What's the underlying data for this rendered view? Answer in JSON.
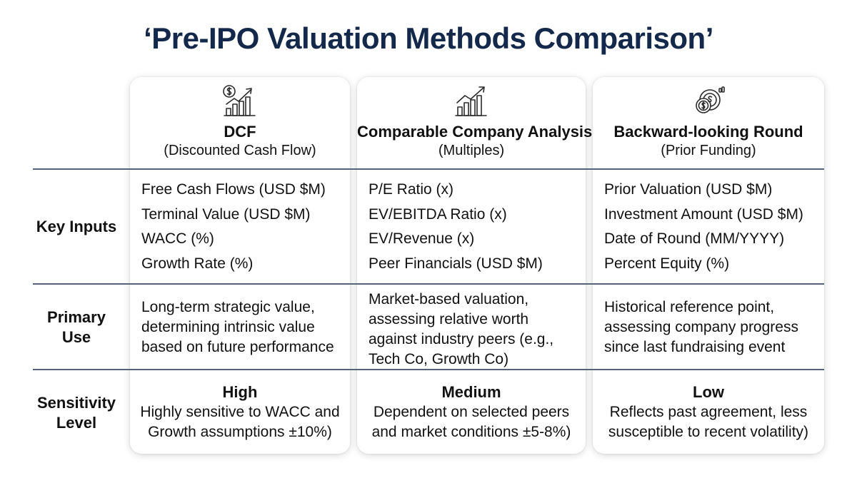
{
  "title": "‘Pre-IPO Valuation Methods Comparison’",
  "row_labels": {
    "key_inputs": "Key Inputs",
    "primary_use": [
      "Primary",
      "Use"
    ],
    "sensitivity": [
      "Sensitivity",
      "Level"
    ]
  },
  "columns": [
    {
      "icon": "money-growth-chart-icon",
      "title": "DCF",
      "subtitle": "(Discounted Cash Flow)",
      "inputs": [
        "Free Cash Flows (USD $M)",
        "Terminal Value (USD $M)",
        "WACC (%)",
        "Growth Rate (%)"
      ],
      "use": [
        "Long-term strategic value,",
        "determining intrinsic value",
        "based on future performance"
      ],
      "sensitivity_level": "High",
      "sensitivity_text": [
        "Highly sensitive to WACC and",
        "Growth assumptions ±10%)"
      ]
    },
    {
      "icon": "bar-chart-growth-icon",
      "title": "Comparable Company Analysis",
      "subtitle": "(Multiples)",
      "inputs": [
        "P/E Ratio (x)",
        "EV/EBITDA Ratio (x)",
        "EV/Revenue (x)",
        "Peer Financials (USD $M)"
      ],
      "use": [
        "Market-based valuation,",
        "assessing relative worth",
        "against industry peers (e.g.,",
        "Tech Co, Growth Co)"
      ],
      "sensitivity_level": "Medium",
      "sensitivity_text": [
        "Dependent on selected peers",
        "and market conditions ±5-8%)"
      ]
    },
    {
      "icon": "coins-history-icon",
      "title": "Backward-looking Round",
      "subtitle": "(Prior Funding)",
      "inputs": [
        "Prior Valuation (USD $M)",
        "Investment Amount (USD $M)",
        "Date of Round (MM/YYYY)",
        "Percent Equity (%)"
      ],
      "use": [
        "Historical reference point,",
        "assessing company progress",
        "since last fundraising event"
      ],
      "sensitivity_level": "Low",
      "sensitivity_text": [
        "Reflects past agreement, less",
        "susceptible to recent volatility)"
      ]
    }
  ]
}
